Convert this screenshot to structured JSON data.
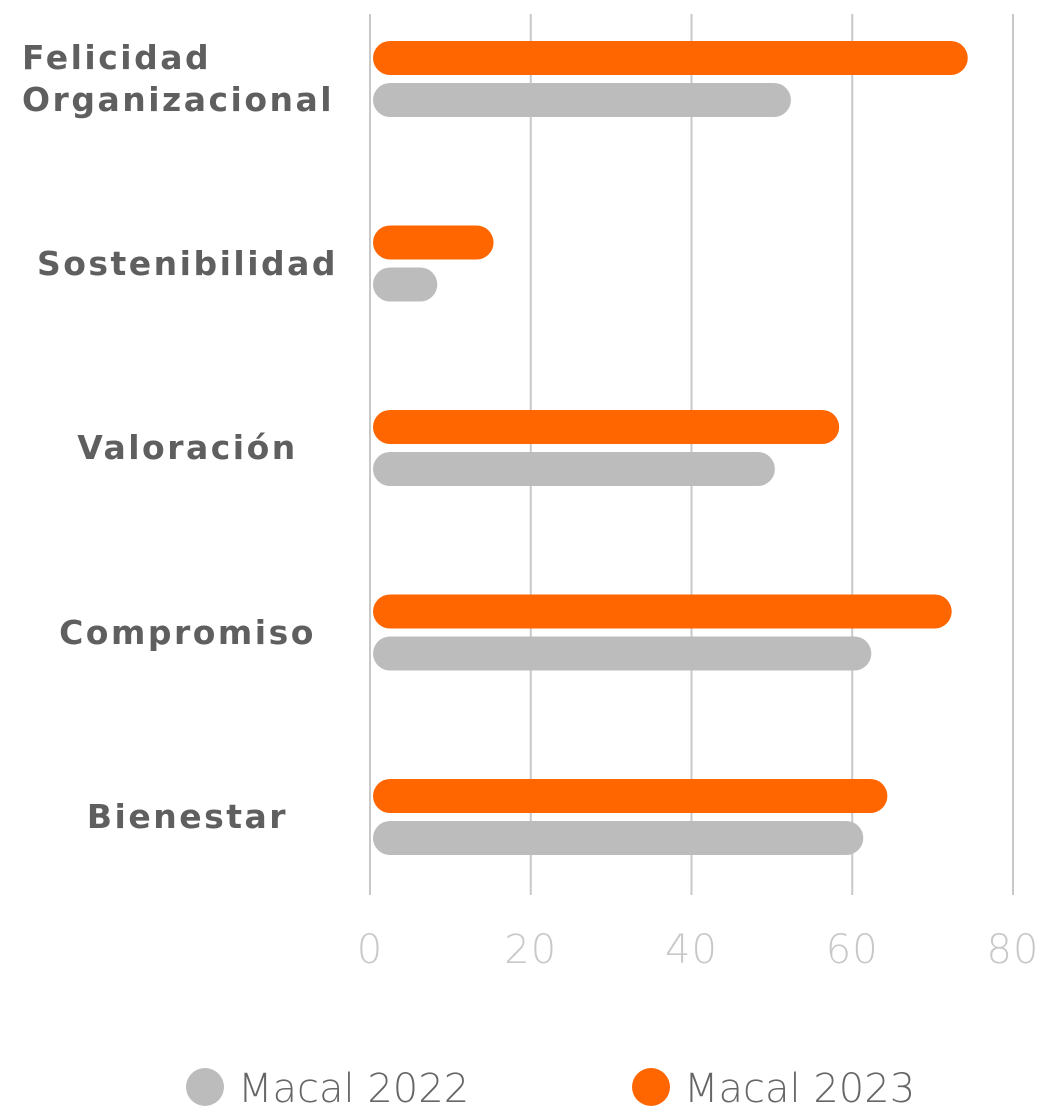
{
  "chart_data": {
    "type": "bar",
    "orientation": "horizontal",
    "categories": [
      "Felicidad Organizacional",
      "Sostenibilidad",
      "Valoración",
      "Compromiso",
      "Bienestar"
    ],
    "series": [
      {
        "name": "Macal 2022",
        "color": "#bcbcbc",
        "values": [
          52,
          8,
          50,
          62,
          61
        ]
      },
      {
        "name": "Macal 2023",
        "color": "#ff6600",
        "values": [
          74,
          15,
          58,
          72,
          64
        ]
      }
    ],
    "xlim": [
      0,
      80
    ],
    "xticks": [
      0,
      20,
      40,
      60,
      80
    ],
    "grid": true,
    "legend": "bottom"
  }
}
